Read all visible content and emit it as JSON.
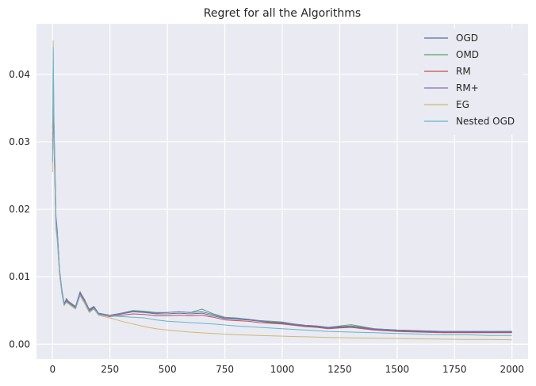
{
  "chart_data": {
    "type": "line",
    "title": "Regret for all the Algorithms",
    "xlabel": "",
    "ylabel": "",
    "xlim": [
      -70,
      2070
    ],
    "ylim": [
      -0.0022,
      0.0475
    ],
    "xticks": [
      0,
      250,
      500,
      750,
      1000,
      1250,
      1500,
      1750,
      2000
    ],
    "yticks": [
      0.0,
      0.01,
      0.02,
      0.03,
      0.04
    ],
    "xtick_labels": [
      "0",
      "250",
      "500",
      "750",
      "1000",
      "1250",
      "1500",
      "1750",
      "2000"
    ],
    "ytick_labels": [
      "0.00",
      "0.01",
      "0.02",
      "0.03",
      "0.04"
    ],
    "grid": true,
    "legend_position": "top-right",
    "background": "#eaeaf2",
    "series": [
      {
        "name": "OGD",
        "color": "#4c72b0",
        "x": [
          0,
          3,
          6,
          10,
          15,
          20,
          30,
          40,
          50,
          60,
          80,
          100,
          120,
          140,
          160,
          180,
          200,
          250,
          300,
          350,
          400,
          450,
          500,
          550,
          600,
          650,
          700,
          750,
          800,
          850,
          900,
          950,
          1000,
          1050,
          1100,
          1150,
          1200,
          1250,
          1300,
          1350,
          1400,
          1450,
          1500,
          1600,
          1700,
          1800,
          1900,
          2000
        ],
        "y": [
          0.03,
          0.036,
          0.032,
          0.026,
          0.018,
          0.017,
          0.011,
          0.008,
          0.006,
          0.0065,
          0.006,
          0.0055,
          0.0075,
          0.0065,
          0.005,
          0.0055,
          0.0045,
          0.0042,
          0.0045,
          0.0048,
          0.0047,
          0.0045,
          0.0045,
          0.0046,
          0.0045,
          0.0046,
          0.0042,
          0.0038,
          0.0037,
          0.0036,
          0.0034,
          0.0032,
          0.0031,
          0.0029,
          0.0027,
          0.0026,
          0.0024,
          0.0025,
          0.0026,
          0.0024,
          0.0022,
          0.0021,
          0.002,
          0.0019,
          0.0018,
          0.0018,
          0.0018,
          0.0018
        ]
      },
      {
        "name": "OMD",
        "color": "#55a868",
        "x": [
          0,
          3,
          6,
          10,
          15,
          20,
          30,
          40,
          50,
          60,
          80,
          100,
          120,
          140,
          160,
          180,
          200,
          250,
          300,
          350,
          400,
          450,
          500,
          550,
          600,
          650,
          700,
          750,
          800,
          850,
          900,
          950,
          1000,
          1050,
          1100,
          1150,
          1200,
          1250,
          1300,
          1350,
          1400,
          1450,
          1500,
          1600,
          1700,
          1800,
          1900,
          2000
        ],
        "y": [
          0.029,
          0.035,
          0.031,
          0.025,
          0.017,
          0.016,
          0.0105,
          0.0078,
          0.0058,
          0.0068,
          0.0058,
          0.0056,
          0.0078,
          0.0064,
          0.0052,
          0.0056,
          0.0046,
          0.0043,
          0.0046,
          0.005,
          0.0049,
          0.0047,
          0.0047,
          0.0048,
          0.0047,
          0.0052,
          0.0045,
          0.004,
          0.0039,
          0.0037,
          0.0035,
          0.0034,
          0.0033,
          0.003,
          0.0028,
          0.0027,
          0.0025,
          0.0027,
          0.0029,
          0.0026,
          0.0023,
          0.0022,
          0.0021,
          0.002,
          0.0019,
          0.0019,
          0.0019,
          0.0019
        ]
      },
      {
        "name": "RM",
        "color": "#c44e52",
        "x": [
          0,
          3,
          6,
          10,
          15,
          20,
          30,
          40,
          50,
          60,
          80,
          100,
          120,
          140,
          160,
          180,
          200,
          250,
          300,
          350,
          400,
          450,
          500,
          550,
          600,
          650,
          700,
          750,
          800,
          850,
          900,
          950,
          1000,
          1050,
          1100,
          1150,
          1200,
          1250,
          1300,
          1350,
          1400,
          1450,
          1500,
          1600,
          1700,
          1800,
          1900,
          2000
        ],
        "y": [
          0.031,
          0.034,
          0.03,
          0.024,
          0.0175,
          0.0165,
          0.0108,
          0.0079,
          0.0059,
          0.0064,
          0.0059,
          0.0054,
          0.0074,
          0.0064,
          0.0049,
          0.0054,
          0.0044,
          0.0041,
          0.0043,
          0.0045,
          0.0044,
          0.0042,
          0.0042,
          0.0043,
          0.0042,
          0.0043,
          0.004,
          0.0036,
          0.0035,
          0.0034,
          0.0032,
          0.0031,
          0.003,
          0.0028,
          0.0026,
          0.0025,
          0.0023,
          0.0024,
          0.0025,
          0.0023,
          0.0021,
          0.002,
          0.0019,
          0.0018,
          0.0017,
          0.0017,
          0.0017,
          0.0017
        ]
      },
      {
        "name": "RM+",
        "color": "#8172b3",
        "x": [
          0,
          3,
          6,
          10,
          15,
          20,
          30,
          40,
          50,
          60,
          80,
          100,
          120,
          140,
          160,
          180,
          200,
          250,
          300,
          350,
          400,
          450,
          500,
          550,
          600,
          650,
          700,
          750,
          800,
          850,
          900,
          950,
          1000,
          1050,
          1100,
          1150,
          1200,
          1250,
          1300,
          1350,
          1400,
          1450,
          1500,
          1600,
          1700,
          1800,
          1900,
          2000
        ],
        "y": [
          0.032,
          0.036,
          0.033,
          0.027,
          0.019,
          0.017,
          0.0112,
          0.0082,
          0.0061,
          0.0066,
          0.0061,
          0.0056,
          0.0077,
          0.0066,
          0.0051,
          0.0056,
          0.0046,
          0.0043,
          0.0046,
          0.0049,
          0.0048,
          0.0046,
          0.0047,
          0.0048,
          0.0047,
          0.0048,
          0.0044,
          0.0039,
          0.0038,
          0.0037,
          0.0035,
          0.0033,
          0.0032,
          0.003,
          0.0028,
          0.0027,
          0.0025,
          0.0026,
          0.0027,
          0.0025,
          0.0023,
          0.0022,
          0.0021,
          0.002,
          0.0019,
          0.0019,
          0.0019,
          0.0019
        ]
      },
      {
        "name": "EG",
        "color": "#ccb974",
        "x": [
          0,
          3,
          6,
          10,
          15,
          20,
          30,
          40,
          50,
          60,
          80,
          100,
          120,
          140,
          160,
          180,
          200,
          250,
          300,
          350,
          400,
          450,
          500,
          600,
          700,
          800,
          900,
          1000,
          1100,
          1200,
          1300,
          1400,
          1500,
          1600,
          1700,
          1800,
          1900,
          2000
        ],
        "y": [
          0.0255,
          0.045,
          0.033,
          0.025,
          0.017,
          0.0155,
          0.0105,
          0.0075,
          0.0057,
          0.0062,
          0.0057,
          0.0052,
          0.0072,
          0.006,
          0.0047,
          0.0052,
          0.0043,
          0.0039,
          0.0034,
          0.003,
          0.0026,
          0.0023,
          0.0021,
          0.0018,
          0.0016,
          0.0014,
          0.0013,
          0.0012,
          0.0011,
          0.001,
          0.00095,
          0.0009,
          0.00085,
          0.0008,
          0.00075,
          0.0007,
          0.0007,
          0.00065
        ]
      },
      {
        "name": "Nested OGD",
        "color": "#64b5cd",
        "x": [
          0,
          3,
          6,
          10,
          15,
          20,
          30,
          40,
          50,
          60,
          80,
          100,
          120,
          140,
          160,
          180,
          200,
          250,
          300,
          350,
          400,
          450,
          500,
          600,
          700,
          800,
          900,
          1000,
          1100,
          1200,
          1300,
          1400,
          1500,
          1600,
          1700,
          1800,
          1900,
          2000
        ],
        "y": [
          0.027,
          0.044,
          0.034,
          0.026,
          0.018,
          0.016,
          0.011,
          0.0078,
          0.0058,
          0.0063,
          0.0058,
          0.0053,
          0.0073,
          0.0062,
          0.0048,
          0.0053,
          0.0044,
          0.0042,
          0.0041,
          0.004,
          0.0039,
          0.0036,
          0.0034,
          0.0032,
          0.003,
          0.0027,
          0.0025,
          0.0023,
          0.0021,
          0.0019,
          0.0018,
          0.0017,
          0.0016,
          0.0015,
          0.0014,
          0.0014,
          0.0013,
          0.0013
        ]
      }
    ]
  }
}
